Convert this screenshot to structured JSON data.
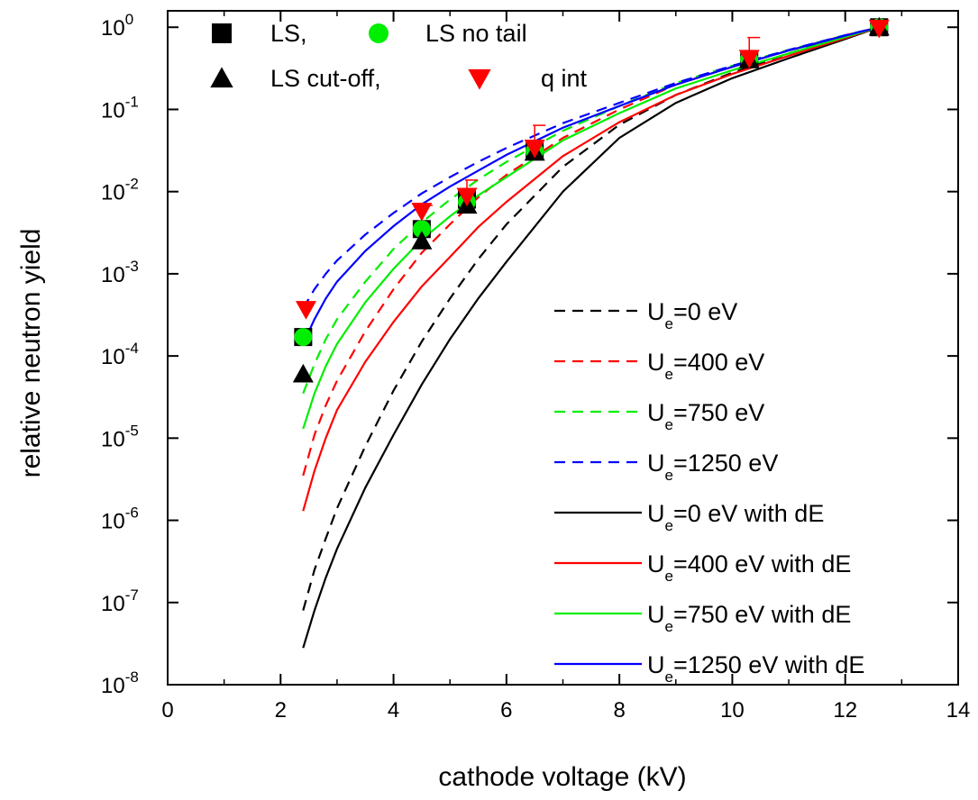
{
  "chart_data": {
    "type": "scatter",
    "title": "",
    "xlabel": "cathode voltage (kV)",
    "ylabel": "relative neutron yield",
    "xlim": [
      0,
      14
    ],
    "ylim_log10": [
      -8,
      0.2
    ],
    "y_scale": "log",
    "x_ticks": [
      0,
      2,
      4,
      6,
      8,
      10,
      12,
      14
    ],
    "y_ticks": [
      {
        "exp": 0,
        "label_base": "10",
        "label_exp": "0"
      },
      {
        "exp": -1,
        "label_base": "10",
        "label_exp": "-1"
      },
      {
        "exp": -2,
        "label_base": "10",
        "label_exp": "-2"
      },
      {
        "exp": -3,
        "label_base": "10",
        "label_exp": "-3"
      },
      {
        "exp": -4,
        "label_base": "10",
        "label_exp": "-4"
      },
      {
        "exp": -5,
        "label_base": "10",
        "label_exp": "-5"
      },
      {
        "exp": -6,
        "label_base": "10",
        "label_exp": "-6"
      },
      {
        "exp": -7,
        "label_base": "10",
        "label_exp": "-7"
      },
      {
        "exp": -8,
        "label_base": "10",
        "label_exp": "-8"
      }
    ],
    "points": [
      {
        "name": "LS,",
        "marker": "square",
        "color": "#000000",
        "x": [
          2.4,
          4.5,
          5.3,
          6.5,
          10.3,
          12.6
        ],
        "y": [
          0.00017,
          0.0035,
          0.008,
          0.031,
          0.41,
          1.0
        ]
      },
      {
        "name": "LS no tail",
        "marker": "circle",
        "color": "#00ee00",
        "x": [
          2.4,
          4.5,
          5.3,
          6.5,
          10.3,
          12.6
        ],
        "y": [
          0.00017,
          0.0035,
          0.0075,
          0.031,
          0.41,
          1.0
        ]
      },
      {
        "name": "LS cut-off,",
        "marker": "triangle-up",
        "color": "#000000",
        "x": [
          2.4,
          4.5,
          5.3,
          6.5,
          10.3,
          12.6
        ],
        "y": [
          6e-05,
          0.0025,
          0.0068,
          0.03,
          0.4,
          1.0
        ]
      },
      {
        "name": "q int",
        "marker": "triangle-down",
        "color": "#ff0000",
        "x": [
          2.45,
          4.5,
          5.3,
          6.5,
          10.3,
          12.6
        ],
        "y": [
          0.00037,
          0.0058,
          0.0088,
          0.034,
          0.42,
          0.98
        ],
        "err_up": [
          0,
          0.001,
          0.005,
          0.03,
          0.33,
          0
        ]
      }
    ],
    "series": [
      {
        "name_base": "U",
        "name_sub": "e",
        "name_tail": "=0 eV",
        "color": "#000000",
        "dash": true,
        "x": [
          2.4,
          2.6,
          2.8,
          3.0,
          3.5,
          4.0,
          4.5,
          5.0,
          5.5,
          6.0,
          7.0,
          8.0,
          9.0,
          10.0,
          11.0,
          12.0,
          12.6
        ],
        "y": [
          8e-08,
          2.5e-07,
          6e-07,
          1.4e-06,
          8e-06,
          3.8e-05,
          0.00015,
          0.0005,
          0.0015,
          0.004,
          0.02,
          0.065,
          0.15,
          0.28,
          0.48,
          0.78,
          1.0
        ]
      },
      {
        "name_base": "U",
        "name_sub": "e",
        "name_tail": "=400 eV",
        "color": "#ff0000",
        "dash": true,
        "x": [
          2.4,
          2.6,
          2.8,
          3.0,
          3.5,
          4.0,
          4.5,
          5.0,
          5.5,
          6.0,
          7.0,
          8.0,
          9.0,
          10.0,
          11.0,
          12.0,
          12.6
        ],
        "y": [
          3.5e-06,
          1.1e-05,
          2.5e-05,
          5e-05,
          0.0002,
          0.00065,
          0.0018,
          0.004,
          0.0085,
          0.016,
          0.045,
          0.1,
          0.2,
          0.33,
          0.52,
          0.8,
          1.0
        ]
      },
      {
        "name_base": "U",
        "name_sub": "e",
        "name_tail": "=750 eV",
        "color": "#00ee00",
        "dash": true,
        "x": [
          2.4,
          2.6,
          2.8,
          3.0,
          3.5,
          4.0,
          4.5,
          5.0,
          5.5,
          6.0,
          7.0,
          8.0,
          9.0,
          10.0,
          11.0,
          12.0,
          12.6
        ],
        "y": [
          3.5e-05,
          8e-05,
          0.00016,
          0.00028,
          0.0008,
          0.002,
          0.0042,
          0.008,
          0.014,
          0.023,
          0.055,
          0.11,
          0.21,
          0.34,
          0.53,
          0.8,
          1.0
        ]
      },
      {
        "name_base": "U",
        "name_sub": "e",
        "name_tail": "=1250 eV",
        "color": "#0000ff",
        "dash": true,
        "x": [
          2.4,
          2.6,
          2.8,
          3.0,
          3.5,
          4.0,
          4.5,
          5.0,
          5.5,
          6.0,
          7.0,
          8.0,
          9.0,
          10.0,
          11.0,
          12.0,
          12.6
        ],
        "y": [
          0.00038,
          0.00065,
          0.001,
          0.00145,
          0.003,
          0.0055,
          0.0095,
          0.015,
          0.023,
          0.034,
          0.068,
          0.12,
          0.21,
          0.34,
          0.53,
          0.8,
          1.0
        ]
      },
      {
        "name_base": "U",
        "name_sub": "e",
        "name_tail": "=0 eV with dE",
        "color": "#000000",
        "dash": false,
        "x": [
          2.4,
          2.6,
          2.8,
          3.0,
          3.5,
          4.0,
          4.5,
          5.0,
          5.5,
          6.0,
          7.0,
          8.0,
          9.0,
          10.0,
          11.0,
          12.0,
          12.6
        ],
        "y": [
          2.8e-08,
          8e-08,
          2e-07,
          4.5e-07,
          2.5e-06,
          1.1e-05,
          4.5e-05,
          0.00016,
          0.0005,
          0.0014,
          0.01,
          0.045,
          0.12,
          0.24,
          0.42,
          0.72,
          1.0
        ]
      },
      {
        "name_base": "U",
        "name_sub": "e",
        "name_tail": "=400 eV with dE",
        "color": "#ff0000",
        "dash": false,
        "x": [
          2.4,
          2.6,
          2.8,
          3.0,
          3.5,
          4.0,
          4.5,
          5.0,
          5.5,
          6.0,
          7.0,
          8.0,
          9.0,
          10.0,
          11.0,
          12.0,
          12.6
        ],
        "y": [
          1.3e-06,
          4e-06,
          1e-05,
          2.2e-05,
          8.5e-05,
          0.00026,
          0.0007,
          0.0016,
          0.0037,
          0.0075,
          0.027,
          0.07,
          0.15,
          0.27,
          0.45,
          0.74,
          1.0
        ]
      },
      {
        "name_base": "U",
        "name_sub": "e",
        "name_tail": "=750 eV with dE",
        "color": "#00ee00",
        "dash": false,
        "x": [
          2.4,
          2.6,
          2.8,
          3.0,
          3.5,
          4.0,
          4.5,
          5.0,
          5.5,
          6.0,
          7.0,
          8.0,
          9.0,
          10.0,
          11.0,
          12.0,
          12.6
        ],
        "y": [
          1.3e-05,
          3.5e-05,
          7.5e-05,
          0.00014,
          0.00045,
          0.00115,
          0.0026,
          0.005,
          0.009,
          0.015,
          0.042,
          0.09,
          0.18,
          0.3,
          0.48,
          0.76,
          1.0
        ]
      },
      {
        "name_base": "U",
        "name_sub": "e",
        "name_tail": "=1250 eV with dE",
        "color": "#0000ff",
        "dash": false,
        "x": [
          2.4,
          2.6,
          2.8,
          3.0,
          3.5,
          4.0,
          4.5,
          5.0,
          5.5,
          6.0,
          7.0,
          8.0,
          9.0,
          10.0,
          11.0,
          12.0,
          12.6
        ],
        "y": [
          0.00014,
          0.00028,
          0.0005,
          0.0008,
          0.0019,
          0.0038,
          0.007,
          0.0115,
          0.018,
          0.028,
          0.06,
          0.11,
          0.2,
          0.33,
          0.52,
          0.79,
          1.0
        ]
      }
    ]
  }
}
